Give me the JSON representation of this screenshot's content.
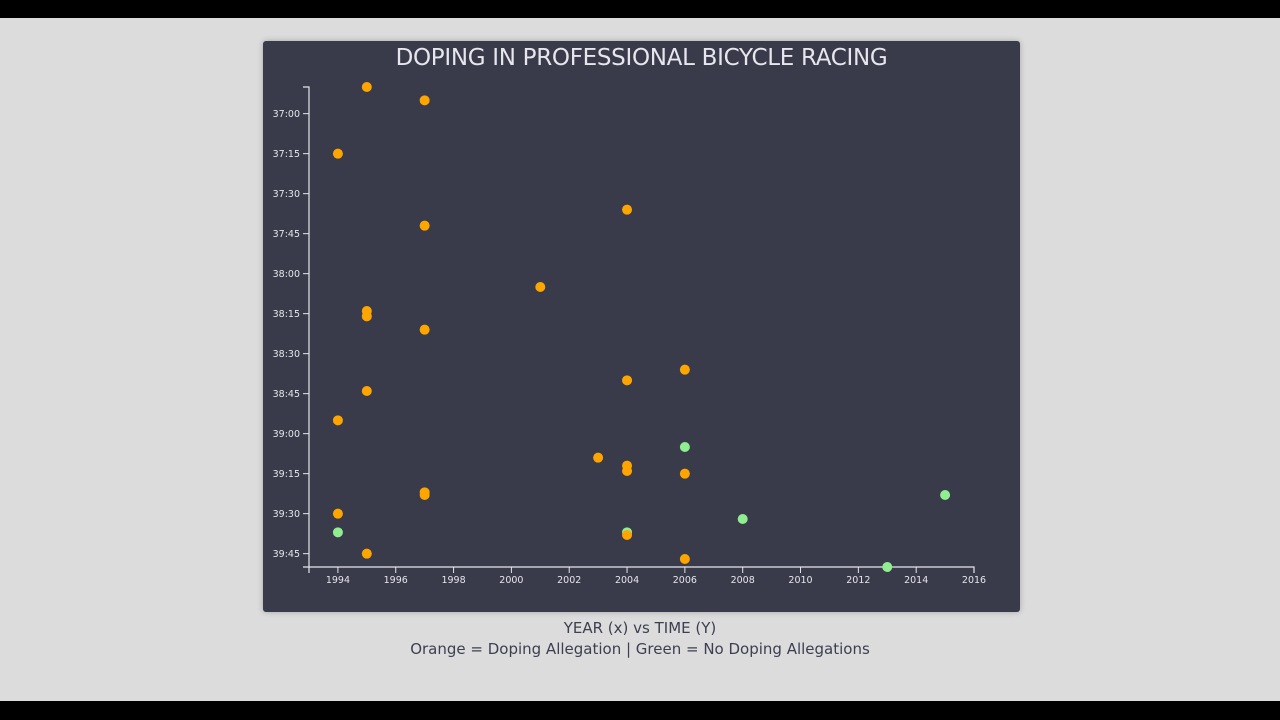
{
  "chart": {
    "title": "DOPING IN PROFESSIONAL BICYCLE RACING",
    "caption_line1": "YEAR (x) vs TIME (Y)",
    "caption_line2": "Orange = Doping Allegation | Green = No Doping Allegations"
  },
  "colors": {
    "page_background": "#dcdcdc",
    "card_background": "#393a4a",
    "axis": "#e6e6ec",
    "doping": "#ffa500",
    "no_doping": "#90ee90",
    "letterbox": "#000000"
  },
  "chart_data": {
    "type": "scatter",
    "title": "DOPING IN PROFESSIONAL BICYCLE RACING",
    "xlabel": "YEAR (x)",
    "ylabel": "TIME (Y)",
    "xlim": [
      1993,
      2016
    ],
    "ylim_seconds": [
      2210,
      2390
    ],
    "y_inverted": true,
    "grid": false,
    "x_ticks": [
      "1994",
      "1996",
      "1998",
      "2000",
      "2002",
      "2004",
      "2006",
      "2008",
      "2010",
      "2012",
      "2014",
      "2016"
    ],
    "y_ticks": [
      "37:00",
      "37:15",
      "37:30",
      "37:45",
      "38:00",
      "38:15",
      "38:30",
      "38:45",
      "39:00",
      "39:15",
      "39:30",
      "39:45"
    ],
    "legend": [
      {
        "label": "Doping Allegation",
        "color": "#ffa500"
      },
      {
        "label": "No Doping Allegations",
        "color": "#90ee90"
      }
    ],
    "points": [
      {
        "year": 1995,
        "time": "36:50",
        "doping": true
      },
      {
        "year": 1997,
        "time": "36:55",
        "doping": true
      },
      {
        "year": 1994,
        "time": "37:15",
        "doping": true
      },
      {
        "year": 2004,
        "time": "37:36",
        "doping": true
      },
      {
        "year": 1997,
        "time": "37:42",
        "doping": true
      },
      {
        "year": 2001,
        "time": "38:05",
        "doping": true
      },
      {
        "year": 1995,
        "time": "38:14",
        "doping": true
      },
      {
        "year": 1995,
        "time": "38:16",
        "doping": true
      },
      {
        "year": 1997,
        "time": "38:21",
        "doping": true
      },
      {
        "year": 2006,
        "time": "38:36",
        "doping": true
      },
      {
        "year": 2004,
        "time": "38:40",
        "doping": true
      },
      {
        "year": 1995,
        "time": "38:44",
        "doping": true
      },
      {
        "year": 1994,
        "time": "38:55",
        "doping": true
      },
      {
        "year": 2006,
        "time": "39:05",
        "doping": false
      },
      {
        "year": 2003,
        "time": "39:09",
        "doping": true
      },
      {
        "year": 2004,
        "time": "39:12",
        "doping": true
      },
      {
        "year": 2004,
        "time": "39:14",
        "doping": true
      },
      {
        "year": 2006,
        "time": "39:15",
        "doping": true
      },
      {
        "year": 1997,
        "time": "39:22",
        "doping": true
      },
      {
        "year": 1997,
        "time": "39:23",
        "doping": true
      },
      {
        "year": 2015,
        "time": "39:23",
        "doping": false
      },
      {
        "year": 1994,
        "time": "39:30",
        "doping": true
      },
      {
        "year": 2008,
        "time": "39:32",
        "doping": false
      },
      {
        "year": 1994,
        "time": "39:37",
        "doping": false
      },
      {
        "year": 2004,
        "time": "39:37",
        "doping": false
      },
      {
        "year": 2004,
        "time": "39:38",
        "doping": true
      },
      {
        "year": 1995,
        "time": "39:45",
        "doping": true
      },
      {
        "year": 2006,
        "time": "39:47",
        "doping": true
      },
      {
        "year": 2013,
        "time": "39:50",
        "doping": false
      }
    ]
  }
}
